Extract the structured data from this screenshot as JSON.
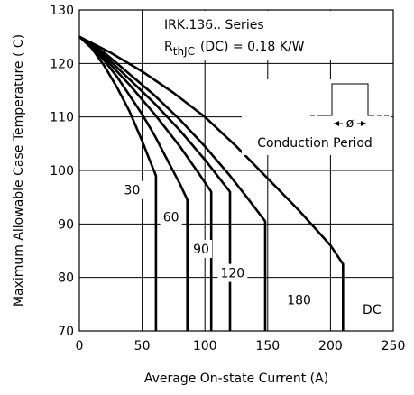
{
  "chart_data": {
    "type": "line",
    "title": "",
    "xlabel": "Average On-state Current (A)",
    "ylabel": "Maximum Allowable Case Temperature ( C)",
    "xlim": [
      0,
      250
    ],
    "ylim": [
      70,
      130
    ],
    "xticks": [
      0,
      50,
      100,
      150,
      200,
      250
    ],
    "yticks": [
      70,
      80,
      90,
      100,
      110,
      120,
      130
    ],
    "grid": true,
    "annotations": {
      "series_title": "IRK.136.. Series",
      "rth_symbol": "R",
      "rth_subscript": "thJC",
      "rth_rest": "(DC) = 0.18 K/W",
      "inset_phi": "ø",
      "inset_label": "Conduction Period"
    },
    "series": [
      {
        "name": "30",
        "x": [
          0,
          10,
          20,
          30,
          40,
          50,
          55,
          61,
          61
        ],
        "y": [
          125,
          122.8,
          119.5,
          115.5,
          111,
          105.5,
          102.5,
          99,
          70
        ]
      },
      {
        "name": "60",
        "x": [
          0,
          10,
          20,
          30,
          40,
          50,
          60,
          70,
          80,
          86,
          86
        ],
        "y": [
          125,
          123,
          120.5,
          117.5,
          114,
          110.5,
          106.5,
          102,
          97.5,
          94.5,
          70
        ]
      },
      {
        "name": "90",
        "x": [
          0,
          20,
          40,
          60,
          80,
          95,
          105,
          105
        ],
        "y": [
          125,
          121,
          116,
          110.5,
          104.5,
          99.5,
          96,
          70
        ]
      },
      {
        "name": "120",
        "x": [
          0,
          20,
          40,
          60,
          80,
          100,
          110,
          120,
          120
        ],
        "y": [
          125,
          121.5,
          117,
          112.5,
          107.5,
          102,
          99,
          96,
          70
        ]
      },
      {
        "name": "180",
        "x": [
          0,
          20,
          40,
          60,
          80,
          100,
          120,
          135,
          148,
          148
        ],
        "y": [
          125,
          122,
          118,
          114,
          109.5,
          104.5,
          99,
          94.5,
          90.5,
          70
        ]
      },
      {
        "name": "DC",
        "x": [
          0,
          25,
          50,
          75,
          100,
          125,
          150,
          175,
          200,
          210,
          210
        ],
        "y": [
          125,
          122,
          118.5,
          114.5,
          110,
          104.5,
          98.5,
          92.5,
          86,
          82.5,
          70
        ]
      }
    ],
    "curve_labels": [
      {
        "text": "30",
        "x": 42,
        "y": 95.5
      },
      {
        "text": "60",
        "x": 73,
        "y": 90.5
      },
      {
        "text": "90",
        "x": 97,
        "y": 84.5
      },
      {
        "text": "120",
        "x": 122,
        "y": 80
      },
      {
        "text": "180",
        "x": 175,
        "y": 75
      },
      {
        "text": "DC",
        "x": 233,
        "y": 73.2
      }
    ]
  }
}
